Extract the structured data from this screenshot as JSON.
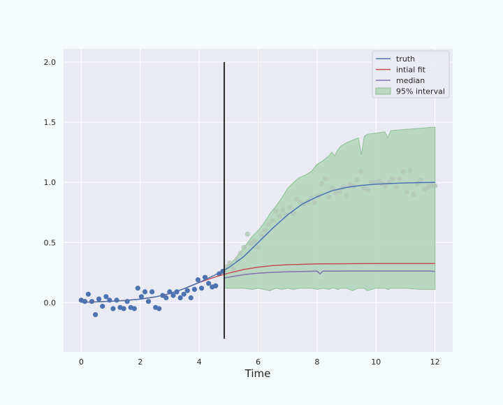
{
  "chart_data": {
    "type": "line",
    "title": "",
    "xlabel": "Time",
    "ylabel": "",
    "xlim": [
      -0.6,
      12.6
    ],
    "ylim": [
      -0.41,
      2.11
    ],
    "xticks": [
      "0",
      "2",
      "4",
      "6",
      "8",
      "10",
      "12"
    ],
    "yticks": [
      "0.0",
      "0.5",
      "1.0",
      "1.5",
      "2.0"
    ],
    "grid": true,
    "legend_position": "top-right",
    "vline": {
      "x": 4.85,
      "y_from": -0.3,
      "y_to": 2.0,
      "color": "#2b2b2b"
    },
    "colors": {
      "background": "#f5fafa",
      "plot_background": "#eaeaf2",
      "grid": "#ffffff",
      "observed": "#4c72b0",
      "truth": "#4c72b0",
      "initial_fit": "#c44e52",
      "median": "#8172b2",
      "interval_fill": "#a8d0b0",
      "interval_edge": "#8cc093"
    },
    "observed_points": {
      "x": [
        0,
        0.12,
        0.24,
        0.36,
        0.48,
        0.6,
        0.72,
        0.84,
        0.96,
        1.08,
        1.2,
        1.32,
        1.44,
        1.56,
        1.68,
        1.8,
        1.92,
        2.04,
        2.16,
        2.28,
        2.4,
        2.52,
        2.64,
        2.76,
        2.88,
        3.0,
        3.12,
        3.24,
        3.36,
        3.48,
        3.6,
        3.72,
        3.84,
        3.96,
        4.08,
        4.2,
        4.32,
        4.44,
        4.56,
        4.68,
        4.8,
        4.92,
        5.04,
        5.16,
        5.28,
        5.4,
        5.52,
        5.64,
        5.76,
        5.88,
        6.0,
        6.12,
        6.24,
        6.36,
        6.48,
        6.6,
        6.72,
        6.84,
        6.96,
        7.08,
        7.2,
        7.32,
        7.44,
        7.56,
        7.68,
        7.8,
        7.92,
        8.04,
        8.16,
        8.28,
        8.4,
        8.52,
        8.64,
        8.76,
        8.88,
        9.0,
        9.12,
        9.24,
        9.36,
        9.48,
        9.6,
        9.72,
        9.84,
        9.96,
        10.08,
        10.2,
        10.32,
        10.44,
        10.56,
        10.68,
        10.8,
        10.92,
        11.04,
        11.16,
        11.28,
        11.4,
        11.52,
        11.64,
        11.76,
        11.88,
        12.0
      ],
      "y": [
        0.02,
        0.01,
        0.07,
        0.01,
        -0.1,
        0.03,
        -0.03,
        0.05,
        0.02,
        -0.05,
        0.02,
        -0.04,
        -0.05,
        0.01,
        -0.04,
        -0.05,
        0.12,
        0.05,
        0.09,
        0.01,
        0.09,
        -0.04,
        -0.05,
        0.06,
        0.04,
        0.09,
        0.06,
        0.09,
        0.04,
        0.07,
        0.1,
        0.04,
        0.11,
        0.19,
        0.12,
        0.21,
        0.16,
        0.13,
        0.14,
        0.24,
        0.26,
        0.3,
        0.33,
        0.28,
        0.36,
        0.41,
        0.46,
        0.57,
        0.49,
        0.51,
        0.46,
        0.55,
        0.6,
        0.65,
        0.68,
        0.76,
        0.72,
        0.77,
        0.73,
        0.79,
        0.74,
        0.86,
        0.83,
        0.82,
        0.84,
        0.87,
        0.83,
        0.89,
        0.99,
        1.03,
        0.88,
        0.95,
        0.91,
        0.92,
        0.96,
        0.89,
        0.98,
        0.97,
        1.02,
        1.09,
        0.95,
        0.94,
        1.0,
        1.0,
        1.01,
        0.99,
        0.97,
        1.0,
        1.03,
        0.96,
        1.03,
        1.09,
        0.92,
        1.1,
        0.9,
        0.99,
        1.02,
        0.94,
        0.96,
        0.97,
        0.97
      ]
    },
    "series": [
      {
        "name": "truth",
        "x": [
          0,
          0.5,
          1,
          1.5,
          2,
          2.5,
          3,
          3.5,
          4,
          4.5,
          5,
          5.5,
          6,
          6.5,
          7,
          7.5,
          8,
          8.5,
          9,
          9.5,
          10,
          10.5,
          11,
          11.5,
          12
        ],
        "y": [
          0.003,
          0.006,
          0.011,
          0.018,
          0.029,
          0.047,
          0.075,
          0.117,
          0.168,
          0.226,
          0.29,
          0.38,
          0.5,
          0.62,
          0.73,
          0.82,
          0.88,
          0.93,
          0.958,
          0.975,
          0.985,
          0.991,
          0.995,
          0.998,
          1.0
        ]
      },
      {
        "name": "intial fit",
        "x": [
          0,
          0.5,
          1,
          1.5,
          2,
          2.5,
          3,
          3.5,
          4,
          4.5,
          5,
          5.5,
          6,
          6.5,
          7,
          7.5,
          8,
          8.5,
          9,
          10,
          11,
          12
        ],
        "y": [
          0.003,
          0.006,
          0.011,
          0.018,
          0.029,
          0.047,
          0.075,
          0.117,
          0.168,
          0.21,
          0.245,
          0.275,
          0.295,
          0.308,
          0.315,
          0.319,
          0.322,
          0.323,
          0.324,
          0.325,
          0.325,
          0.325
        ]
      },
      {
        "name": "median",
        "x": [
          4.85,
          5.2,
          5.6,
          6.0,
          6.5,
          7.0,
          7.5,
          8.0,
          8.1,
          8.2,
          8.5,
          9,
          10,
          11,
          11.8,
          12
        ],
        "y": [
          0.205,
          0.22,
          0.235,
          0.245,
          0.252,
          0.256,
          0.259,
          0.262,
          0.24,
          0.262,
          0.262,
          0.263,
          0.263,
          0.263,
          0.263,
          0.26
        ]
      }
    ],
    "interval": {
      "name": "95% interval",
      "x": [
        4.85,
        5.2,
        5.5,
        5.8,
        6.0,
        6.2,
        6.4,
        6.6,
        6.8,
        7.0,
        7.2,
        7.4,
        7.6,
        7.8,
        8.0,
        8.2,
        8.4,
        8.5,
        8.6,
        8.7,
        8.8,
        9.0,
        9.2,
        9.4,
        9.5,
        9.6,
        9.7,
        10.0,
        10.3,
        10.4,
        10.5,
        11.0,
        11.5,
        12.0
      ],
      "upper": [
        0.27,
        0.36,
        0.45,
        0.55,
        0.6,
        0.66,
        0.74,
        0.8,
        0.87,
        0.95,
        1.0,
        1.04,
        1.06,
        1.09,
        1.15,
        1.18,
        1.22,
        1.25,
        1.22,
        1.27,
        1.3,
        1.33,
        1.35,
        1.37,
        1.23,
        1.38,
        1.4,
        1.41,
        1.42,
        1.37,
        1.43,
        1.44,
        1.45,
        1.46
      ],
      "lower": [
        0.12,
        0.12,
        0.12,
        0.11,
        0.12,
        0.11,
        0.1,
        0.12,
        0.11,
        0.12,
        0.11,
        0.12,
        0.12,
        0.12,
        0.11,
        0.12,
        0.11,
        0.12,
        0.12,
        0.11,
        0.12,
        0.12,
        0.1,
        0.12,
        0.12,
        0.12,
        0.1,
        0.12,
        0.12,
        0.11,
        0.12,
        0.12,
        0.11,
        0.11
      ]
    },
    "legend": [
      "truth",
      "intial fit",
      "median",
      "95% interval"
    ]
  }
}
